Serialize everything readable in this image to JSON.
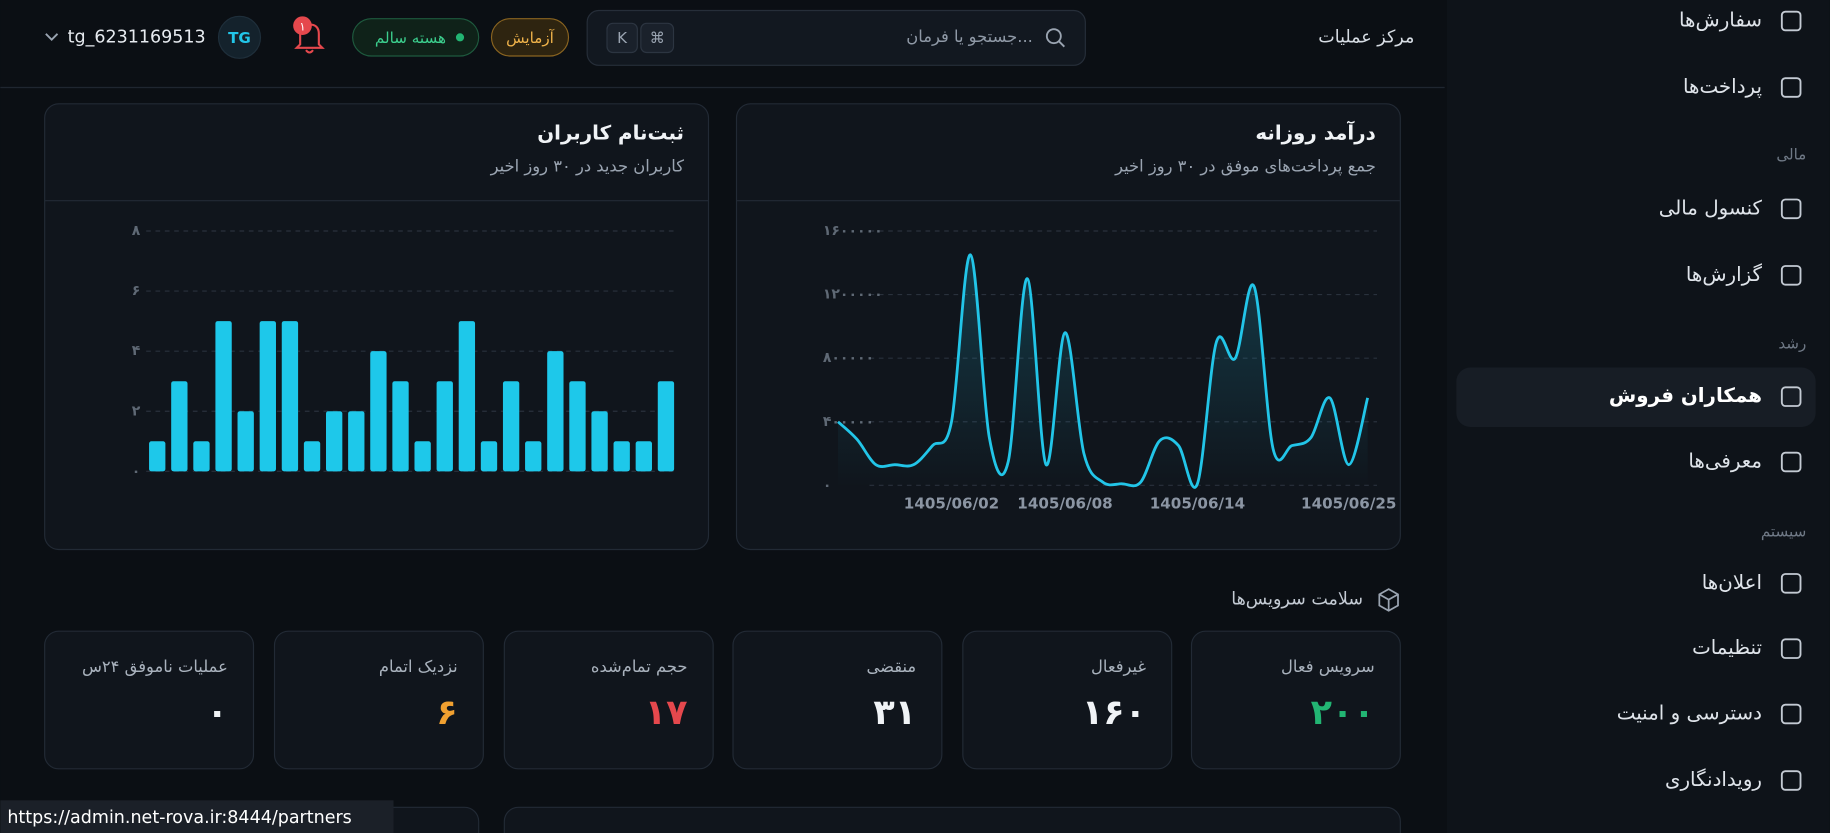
{
  "header": {
    "title": "مرکز عملیات",
    "search_placeholder": "جستجو یا فرمان...",
    "shortcut_keys": [
      "⌘",
      "K"
    ],
    "badges": [
      "آزمایش",
      "هسته سالم"
    ],
    "notifications": "۱",
    "avatar": "TG",
    "username": "tg_6231169513"
  },
  "sidebar": {
    "top": [
      {
        "label": "سفارش‌ها"
      },
      {
        "label": "پرداخت‌ها"
      }
    ],
    "groups": [
      {
        "title": "مالی",
        "items": [
          {
            "label": "کنسول مالی"
          },
          {
            "label": "گزارش‌ها"
          }
        ]
      },
      {
        "title": "رشد",
        "items": [
          {
            "label": "همکاران فروش",
            "active": true
          },
          {
            "label": "معرفی‌ها"
          }
        ]
      },
      {
        "title": "سیستم",
        "items": [
          {
            "label": "اعلان‌ها"
          },
          {
            "label": "تنظیمات"
          },
          {
            "label": "دسترسی و امنیت"
          },
          {
            "label": "رویدادنگاری"
          }
        ]
      }
    ]
  },
  "chart_data": [
    {
      "type": "line",
      "title": "درآمد روزانه",
      "subtitle": "جمع پرداخت‌های موفق در ۳۰ روز اخیر",
      "color": "#22c5e8",
      "grid": true,
      "categories": [
        null,
        null,
        null,
        null,
        null,
        null,
        "1405/06/02",
        null,
        null,
        null,
        null,
        null,
        "1405/06/08",
        null,
        null,
        null,
        null,
        null,
        null,
        "1405/06/14",
        null,
        null,
        null,
        null,
        null,
        null,
        null,
        "1405/06/25",
        null
      ],
      "values": [
        400000,
        290000,
        130000,
        130000,
        130000,
        250000,
        400000,
        1450000,
        300000,
        150000,
        1300000,
        130000,
        960000,
        200000,
        20000,
        10000,
        20000,
        280000,
        250000,
        10000,
        900000,
        800000,
        1250000,
        230000,
        250000,
        300000,
        550000,
        130000,
        550000
      ],
      "ylim": [
        0,
        1600000
      ],
      "yticks": [
        {
          "value": 0,
          "label": "۰"
        },
        {
          "value": 400000,
          "label": "۴۰۰۰۰۰"
        },
        {
          "value": 800000,
          "label": "۸۰۰۰۰۰"
        },
        {
          "value": 1200000,
          "label": "۱۲۰۰۰۰۰"
        },
        {
          "value": 1600000,
          "label": "۱۶۰۰۰۰۰"
        }
      ]
    },
    {
      "type": "bar",
      "title": "ثبت‌نام کاربران",
      "subtitle": "کاربران جدید در ۳۰ روز اخیر",
      "color": "#1ec8ea",
      "grid": true,
      "categories": [
        null,
        null,
        null,
        null,
        null,
        null,
        null,
        null,
        null,
        null,
        null,
        null,
        null,
        null,
        null,
        null,
        null,
        null,
        null,
        null,
        null,
        null,
        null,
        null
      ],
      "values": [
        1,
        3,
        1,
        5,
        2,
        5,
        5,
        1,
        2,
        2,
        4,
        3,
        1,
        3,
        5,
        1,
        3,
        1,
        4,
        3,
        2,
        1,
        1,
        3
      ],
      "ylim": [
        0,
        8
      ],
      "yticks": [
        {
          "value": 0,
          "label": "۰"
        },
        {
          "value": 2,
          "label": "۲"
        },
        {
          "value": 4,
          "label": "۴"
        },
        {
          "value": 6,
          "label": "۶"
        },
        {
          "value": 8,
          "label": "۸"
        }
      ]
    }
  ],
  "services": {
    "title": "سلامت سرویس‌ها",
    "cards": [
      {
        "label": "سرویس فعال",
        "value": "۲۰۰",
        "color": "#22b573"
      },
      {
        "label": "غیرفعال",
        "value": "۱۶۰",
        "color": "#f0f3f6"
      },
      {
        "label": "منقضی",
        "value": "۳۱",
        "color": "#f0f3f6"
      },
      {
        "label": "حجم تمام‌شده",
        "value": "۱۷",
        "color": "#e5484d"
      },
      {
        "label": "نزدیک اتمام",
        "value": "۶",
        "color": "#f0a030"
      },
      {
        "label": "عملیات ناموفق ۲۴س",
        "value": "۰",
        "color": "#f0f3f6"
      }
    ]
  },
  "status_url": "https://admin.net-rova.ir:8444/partners"
}
